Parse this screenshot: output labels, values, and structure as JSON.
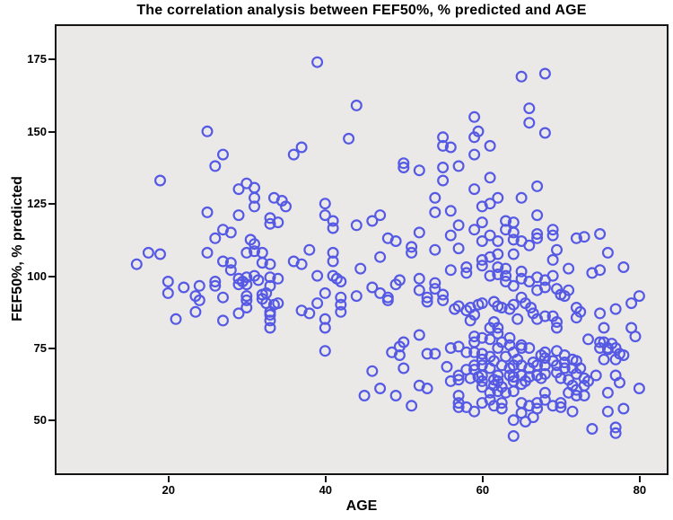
{
  "chart_data": {
    "type": "scatter",
    "title": "The correlation analysis between FEF50%, % predicted and AGE",
    "xlabel": "AGE",
    "ylabel": "FEF50%, % predicted",
    "x_ticks": [
      20,
      40,
      60,
      80
    ],
    "y_ticks": [
      175,
      150,
      125,
      100,
      75,
      50
    ],
    "x_domain": [
      5.8,
      83.5
    ],
    "y_domain": [
      31.6,
      186.5
    ],
    "grid": false,
    "legend": null,
    "plot_bg": "#ebe9e8",
    "frame_color": "#141414",
    "marker": {
      "shape": "open-circle",
      "color": "#5559e3",
      "radius": 5.4,
      "stroke_width": 2.2
    },
    "points": [
      [
        39,
        174
      ],
      [
        44,
        159
      ],
      [
        25,
        150
      ],
      [
        43,
        147.5
      ],
      [
        36,
        142
      ],
      [
        37,
        144.5
      ],
      [
        27,
        142
      ],
      [
        26,
        138
      ],
      [
        19,
        133
      ],
      [
        30,
        132
      ],
      [
        29,
        130
      ],
      [
        31,
        130.5
      ],
      [
        31,
        127
      ],
      [
        33.5,
        127
      ],
      [
        34.5,
        126
      ],
      [
        31,
        124
      ],
      [
        35,
        124
      ],
      [
        40,
        125
      ],
      [
        25,
        122
      ],
      [
        29,
        121
      ],
      [
        40,
        121
      ],
      [
        41,
        119
      ],
      [
        33,
        120
      ],
      [
        33,
        118
      ],
      [
        34,
        118.5
      ],
      [
        41,
        116.5
      ],
      [
        44,
        117.5
      ],
      [
        27,
        116
      ],
      [
        28,
        115
      ],
      [
        26,
        113
      ],
      [
        30.5,
        112.5
      ],
      [
        31,
        111
      ],
      [
        38,
        109
      ],
      [
        65,
        169
      ],
      [
        68,
        170
      ],
      [
        66,
        158
      ],
      [
        66,
        153
      ],
      [
        68,
        149.5
      ],
      [
        59,
        155
      ],
      [
        59.5,
        150
      ],
      [
        59,
        148
      ],
      [
        55,
        148
      ],
      [
        61,
        145
      ],
      [
        55,
        145
      ],
      [
        56,
        144.5
      ],
      [
        59,
        142
      ],
      [
        50,
        139
      ],
      [
        50,
        137.5
      ],
      [
        52,
        136.5
      ],
      [
        55,
        137.5
      ],
      [
        57,
        138
      ],
      [
        55,
        133
      ],
      [
        61,
        134
      ],
      [
        59,
        130
      ],
      [
        67,
        131
      ],
      [
        54,
        127
      ],
      [
        65,
        127
      ],
      [
        62,
        127
      ],
      [
        61,
        125
      ],
      [
        60,
        124
      ],
      [
        54,
        122
      ],
      [
        56,
        122.5
      ],
      [
        67,
        121
      ],
      [
        47,
        121
      ],
      [
        46,
        119
      ],
      [
        60,
        118.5
      ],
      [
        63,
        119
      ],
      [
        64,
        118.5
      ],
      [
        57,
        117.5
      ],
      [
        59,
        116
      ],
      [
        52,
        115
      ],
      [
        69,
        116
      ],
      [
        63,
        116
      ],
      [
        67,
        114.5
      ],
      [
        72,
        113
      ],
      [
        73,
        113.5
      ],
      [
        75,
        114.5
      ],
      [
        48,
        113
      ],
      [
        49,
        112
      ],
      [
        51,
        110
      ],
      [
        51,
        108
      ],
      [
        56,
        114
      ],
      [
        61,
        114
      ],
      [
        60,
        112
      ],
      [
        62,
        112
      ],
      [
        64,
        115
      ],
      [
        64,
        112.5
      ],
      [
        65,
        112
      ],
      [
        66,
        110.5
      ],
      [
        67,
        113
      ],
      [
        69,
        114
      ],
      [
        76,
        108
      ],
      [
        54,
        109
      ],
      [
        57,
        109.5
      ],
      [
        17.5,
        108
      ],
      [
        19,
        107.5
      ],
      [
        16,
        104
      ],
      [
        25,
        108
      ],
      [
        27,
        105
      ],
      [
        28,
        104.5
      ],
      [
        30,
        108
      ],
      [
        31,
        108.5
      ],
      [
        32,
        108
      ],
      [
        28,
        102
      ],
      [
        32,
        104.5
      ],
      [
        33,
        104
      ],
      [
        36,
        105
      ],
      [
        37,
        104
      ],
      [
        41,
        108
      ],
      [
        41,
        105
      ],
      [
        39,
        100
      ],
      [
        41,
        100
      ],
      [
        41.5,
        99
      ],
      [
        42,
        98
      ],
      [
        20,
        98
      ],
      [
        20,
        94
      ],
      [
        22,
        96
      ],
      [
        24,
        96.5
      ],
      [
        26,
        98
      ],
      [
        26,
        96.5
      ],
      [
        29,
        99
      ],
      [
        29,
        97
      ],
      [
        29.5,
        98
      ],
      [
        30,
        97
      ],
      [
        30,
        99.5
      ],
      [
        31,
        100
      ],
      [
        31.5,
        98.5
      ],
      [
        33,
        99.5
      ],
      [
        33,
        96.5
      ],
      [
        34,
        99
      ],
      [
        23.5,
        93
      ],
      [
        24,
        91.5
      ],
      [
        27,
        92.5
      ],
      [
        30,
        93
      ],
      [
        30,
        91.5
      ],
      [
        32,
        93.5
      ],
      [
        32.5,
        94
      ],
      [
        32,
        92
      ],
      [
        32.5,
        90.5
      ],
      [
        33.5,
        90
      ],
      [
        34,
        90.5
      ],
      [
        23.5,
        87.5
      ],
      [
        29,
        87
      ],
      [
        30,
        89
      ],
      [
        33,
        87.5
      ],
      [
        33,
        86.5
      ],
      [
        37,
        88
      ],
      [
        38,
        87
      ],
      [
        39,
        90.5
      ],
      [
        40,
        94
      ],
      [
        42,
        92.5
      ],
      [
        42,
        90
      ],
      [
        42,
        87.5
      ],
      [
        40,
        85
      ],
      [
        40,
        82
      ],
      [
        33,
        84.5
      ],
      [
        33,
        82
      ],
      [
        27,
        84.5
      ],
      [
        21,
        85
      ],
      [
        44,
        93
      ],
      [
        40,
        74
      ],
      [
        45,
        58.5
      ],
      [
        44.5,
        102.5
      ],
      [
        47,
        106.5
      ],
      [
        62,
        107.5
      ],
      [
        61,
        106.5
      ],
      [
        64,
        107.5
      ],
      [
        69,
        105.5
      ],
      [
        69.5,
        109
      ],
      [
        71,
        102.5
      ],
      [
        75,
        102
      ],
      [
        74,
        101
      ],
      [
        78,
        103
      ],
      [
        46,
        96
      ],
      [
        47,
        94
      ],
      [
        48,
        92.5
      ],
      [
        48,
        91.5
      ],
      [
        49.5,
        98.5
      ],
      [
        49,
        97
      ],
      [
        52,
        99
      ],
      [
        52,
        95
      ],
      [
        54,
        97.5
      ],
      [
        54,
        95.5
      ],
      [
        53,
        92.5
      ],
      [
        53,
        91
      ],
      [
        55,
        93.5
      ],
      [
        55,
        91.5
      ],
      [
        56,
        102
      ],
      [
        58,
        103
      ],
      [
        58,
        101
      ],
      [
        60,
        105.5
      ],
      [
        60,
        103.5
      ],
      [
        62,
        103
      ],
      [
        63,
        102.5
      ],
      [
        65,
        101.5
      ],
      [
        61,
        100
      ],
      [
        62,
        100.5
      ],
      [
        63,
        100
      ],
      [
        63,
        98
      ],
      [
        65,
        99
      ],
      [
        66,
        98
      ],
      [
        68,
        98.5
      ],
      [
        68,
        96
      ],
      [
        67,
        95
      ],
      [
        69,
        100
      ],
      [
        67,
        99.5
      ],
      [
        64,
        96.5
      ],
      [
        69.5,
        95.5
      ],
      [
        71,
        95
      ],
      [
        70,
        93.5
      ],
      [
        70.5,
        93
      ],
      [
        80,
        93
      ],
      [
        79,
        90.5
      ],
      [
        77,
        88.5
      ],
      [
        75,
        87
      ],
      [
        72.5,
        87.5
      ],
      [
        57,
        89.5
      ],
      [
        56.5,
        88.5
      ],
      [
        58,
        88
      ],
      [
        58.5,
        89
      ],
      [
        59.5,
        90
      ],
      [
        60,
        90.5
      ],
      [
        59,
        86.5
      ],
      [
        58.5,
        84.5
      ],
      [
        61.5,
        91
      ],
      [
        62,
        89.5
      ],
      [
        62.5,
        89
      ],
      [
        63.5,
        88.5
      ],
      [
        64,
        90
      ],
      [
        65,
        92.5
      ],
      [
        65.5,
        90.5
      ],
      [
        66.2,
        89
      ],
      [
        66.5,
        87
      ],
      [
        67,
        85
      ],
      [
        64.5,
        85
      ],
      [
        61.5,
        84
      ],
      [
        68,
        86
      ],
      [
        69,
        86
      ],
      [
        69.5,
        84
      ],
      [
        69.5,
        82
      ],
      [
        72,
        89
      ],
      [
        72,
        85.5
      ],
      [
        75.5,
        82
      ],
      [
        79,
        82
      ],
      [
        79.5,
        79
      ],
      [
        50,
        77
      ],
      [
        49.5,
        75.5
      ],
      [
        48.5,
        73.5
      ],
      [
        49.5,
        72.5
      ],
      [
        46,
        67
      ],
      [
        47,
        61
      ],
      [
        49,
        58.5
      ],
      [
        51,
        55
      ],
      [
        52,
        62
      ],
      [
        53,
        61
      ],
      [
        52,
        79.5
      ],
      [
        50,
        68
      ],
      [
        54,
        73
      ],
      [
        53,
        73
      ],
      [
        56,
        75
      ],
      [
        57,
        75.5
      ],
      [
        56,
        63.5
      ],
      [
        55.5,
        68.5
      ],
      [
        59,
        73.5
      ],
      [
        60,
        73
      ],
      [
        60,
        71
      ],
      [
        59,
        69
      ],
      [
        60,
        69
      ],
      [
        61,
        68
      ],
      [
        59,
        67.5
      ],
      [
        58,
        67.5
      ],
      [
        57,
        65.5
      ],
      [
        57,
        64
      ],
      [
        58.5,
        64.5
      ],
      [
        59.5,
        65
      ],
      [
        60,
        65.5
      ],
      [
        60,
        63.5
      ],
      [
        60,
        61.5
      ],
      [
        61.5,
        64
      ],
      [
        61.5,
        62
      ],
      [
        62,
        63.5
      ],
      [
        62.5,
        61.5
      ],
      [
        62,
        60
      ],
      [
        61,
        59.5
      ],
      [
        63,
        59.5
      ],
      [
        64,
        60
      ],
      [
        62,
        65.5
      ],
      [
        63.5,
        65.5
      ],
      [
        64,
        65
      ],
      [
        64,
        63.5
      ],
      [
        65,
        62.5
      ],
      [
        65.5,
        63.5
      ],
      [
        65,
        65.5
      ],
      [
        66,
        65
      ],
      [
        67,
        65.5
      ],
      [
        67.5,
        64.5
      ],
      [
        68,
        66
      ],
      [
        68,
        69
      ],
      [
        67,
        69
      ],
      [
        66,
        68
      ],
      [
        65,
        69
      ],
      [
        66.5,
        70
      ],
      [
        67.5,
        72.5
      ],
      [
        68,
        73.5
      ],
      [
        68,
        71.5
      ],
      [
        65,
        76
      ],
      [
        65,
        75
      ],
      [
        66,
        75
      ],
      [
        62,
        75
      ],
      [
        62.5,
        77
      ],
      [
        62,
        80
      ],
      [
        62,
        82
      ],
      [
        61,
        82
      ],
      [
        61,
        78
      ],
      [
        60,
        78.5
      ],
      [
        59,
        79
      ],
      [
        59,
        77
      ],
      [
        58,
        73.5
      ],
      [
        63.5,
        76
      ],
      [
        63.5,
        78.5
      ],
      [
        64,
        73.5
      ],
      [
        63,
        72
      ],
      [
        64.5,
        71
      ],
      [
        64,
        69
      ],
      [
        63.5,
        68
      ],
      [
        62.5,
        69
      ],
      [
        61.5,
        70.5
      ],
      [
        61,
        72
      ],
      [
        69,
        70.5
      ],
      [
        69.5,
        74
      ],
      [
        70.5,
        72.5
      ],
      [
        69.5,
        69
      ],
      [
        69.5,
        66.5
      ],
      [
        70.5,
        70
      ],
      [
        70.5,
        68
      ],
      [
        71.5,
        71
      ],
      [
        72,
        70.5
      ],
      [
        71.5,
        68
      ],
      [
        72.5,
        68
      ],
      [
        72,
        66
      ],
      [
        73,
        64.5
      ],
      [
        73.5,
        63.5
      ],
      [
        73,
        62
      ],
      [
        72,
        60.5
      ],
      [
        71.5,
        62
      ],
      [
        71,
        64
      ],
      [
        70,
        64.5
      ],
      [
        71,
        59.5
      ],
      [
        72,
        58.5
      ],
      [
        73,
        58.5
      ],
      [
        76,
        75
      ],
      [
        75,
        77
      ],
      [
        75.5,
        77
      ],
      [
        76.5,
        76.5
      ],
      [
        75,
        75
      ],
      [
        76,
        74.5
      ],
      [
        77,
        75
      ],
      [
        73.5,
        78
      ],
      [
        77.5,
        73
      ],
      [
        78,
        72.5
      ],
      [
        77,
        71
      ],
      [
        75.5,
        71
      ],
      [
        77,
        65.5
      ],
      [
        74.5,
        65.5
      ],
      [
        77.5,
        63
      ],
      [
        80,
        61
      ],
      [
        76,
        59.5
      ],
      [
        78,
        54
      ],
      [
        76,
        53
      ],
      [
        74,
        47
      ],
      [
        77,
        47.5
      ],
      [
        77,
        45.5
      ],
      [
        64,
        44.5
      ],
      [
        64,
        50
      ],
      [
        65,
        52.5
      ],
      [
        65,
        56
      ],
      [
        66,
        55
      ],
      [
        67,
        56
      ],
      [
        67,
        54
      ],
      [
        62.5,
        54
      ],
      [
        62.5,
        56
      ],
      [
        61.5,
        55
      ],
      [
        61,
        57
      ],
      [
        60,
        56
      ],
      [
        57,
        58.5
      ],
      [
        57,
        56
      ],
      [
        57,
        54.5
      ],
      [
        58,
        54.5
      ],
      [
        59,
        53
      ],
      [
        68,
        59.5
      ],
      [
        68,
        57
      ],
      [
        69,
        55
      ],
      [
        70,
        56
      ],
      [
        70,
        54.5
      ],
      [
        71.5,
        53
      ],
      [
        65.5,
        49.5
      ],
      [
        66.5,
        51
      ]
    ]
  }
}
